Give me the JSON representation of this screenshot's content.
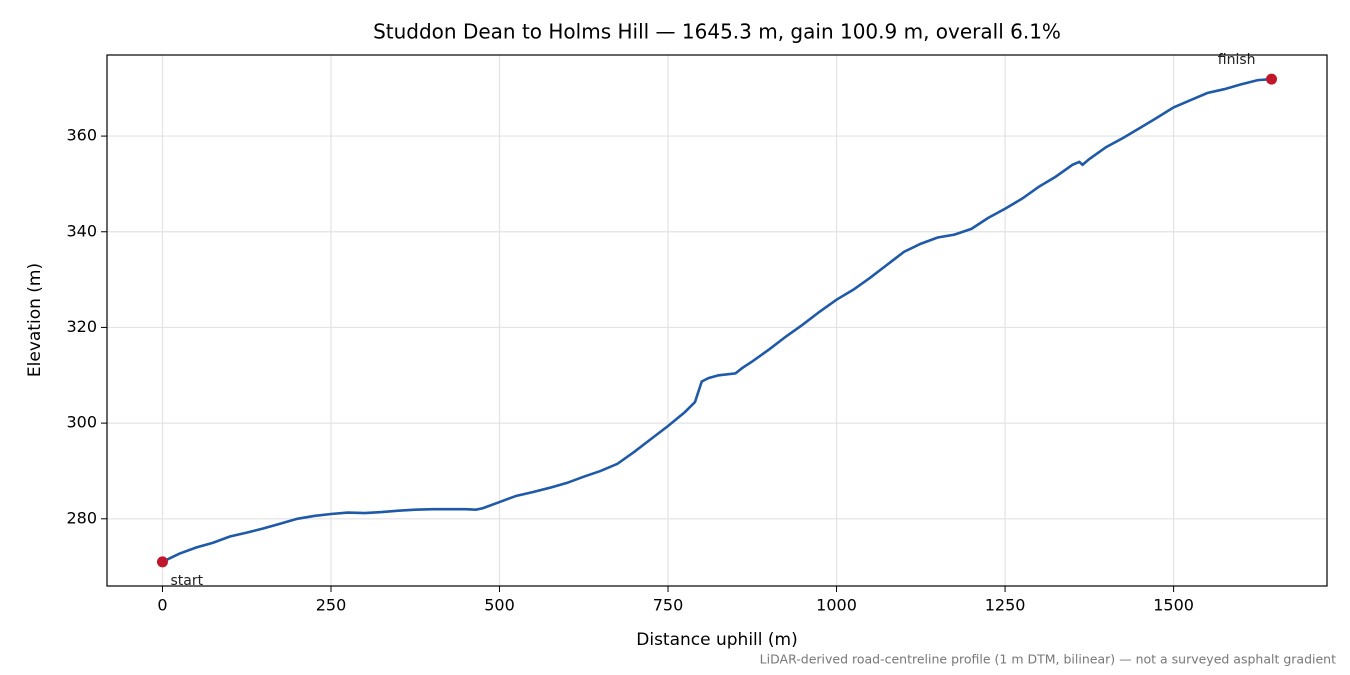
{
  "chart_data": {
    "type": "line",
    "title": "Studdon Dean to Holms Hill — 1645.3 m, gain 100.9 m, overall 6.1%",
    "x_label": "Distance uphill (m)",
    "y_label": "Elevation (m)",
    "note": "LiDAR-derived road-centreline profile (1 m DTM, bilinear) — not a surveyed asphalt gradient",
    "x": [
      0,
      25,
      50,
      75,
      100,
      125,
      150,
      175,
      200,
      225,
      250,
      275,
      300,
      325,
      350,
      375,
      400,
      425,
      450,
      465,
      475,
      500,
      525,
      550,
      575,
      600,
      625,
      650,
      675,
      700,
      725,
      750,
      775,
      790,
      800,
      810,
      825,
      850,
      860,
      875,
      900,
      925,
      950,
      975,
      1000,
      1025,
      1050,
      1075,
      1100,
      1125,
      1150,
      1175,
      1200,
      1225,
      1250,
      1275,
      1300,
      1325,
      1350,
      1360,
      1365,
      1375,
      1400,
      1425,
      1450,
      1475,
      1500,
      1525,
      1550,
      1575,
      1600,
      1625,
      1645.3
    ],
    "series": [
      {
        "name": "Elevation",
        "color": "#1f5aa8",
        "values": [
          271.0,
          272.7,
          274.0,
          275.0,
          276.3,
          277.1,
          278.0,
          279.0,
          280.0,
          280.6,
          281.0,
          281.3,
          281.2,
          281.4,
          281.7,
          281.9,
          282.0,
          282.0,
          282.0,
          281.9,
          282.2,
          283.5,
          284.8,
          285.6,
          286.5,
          287.5,
          288.8,
          290.0,
          291.5,
          294.0,
          296.7,
          299.4,
          302.3,
          304.4,
          308.7,
          309.4,
          310.0,
          310.4,
          311.5,
          312.9,
          315.4,
          318.1,
          320.6,
          323.3,
          325.8,
          327.9,
          330.4,
          333.1,
          335.8,
          337.5,
          338.8,
          339.4,
          340.6,
          342.9,
          344.8,
          346.9,
          349.4,
          351.5,
          354.0,
          354.6,
          354.0,
          355.2,
          357.7,
          359.6,
          361.7,
          363.8,
          366.0,
          367.5,
          369.0,
          369.8,
          370.8,
          371.7,
          371.9
        ]
      }
    ],
    "markers": [
      {
        "label": "start",
        "x": 0,
        "y": 271.0,
        "color": "#c0182a"
      },
      {
        "label": "finish",
        "x": 1645.3,
        "y": 371.9,
        "color": "#c0182a"
      }
    ],
    "xlim": [
      -82.3,
      1727.6
    ],
    "ylim": [
      265.95,
      376.95
    ],
    "xticks": [
      0,
      250,
      500,
      750,
      1000,
      1250,
      1500
    ],
    "yticks": [
      280,
      300,
      320,
      340,
      360
    ],
    "grid": true
  }
}
